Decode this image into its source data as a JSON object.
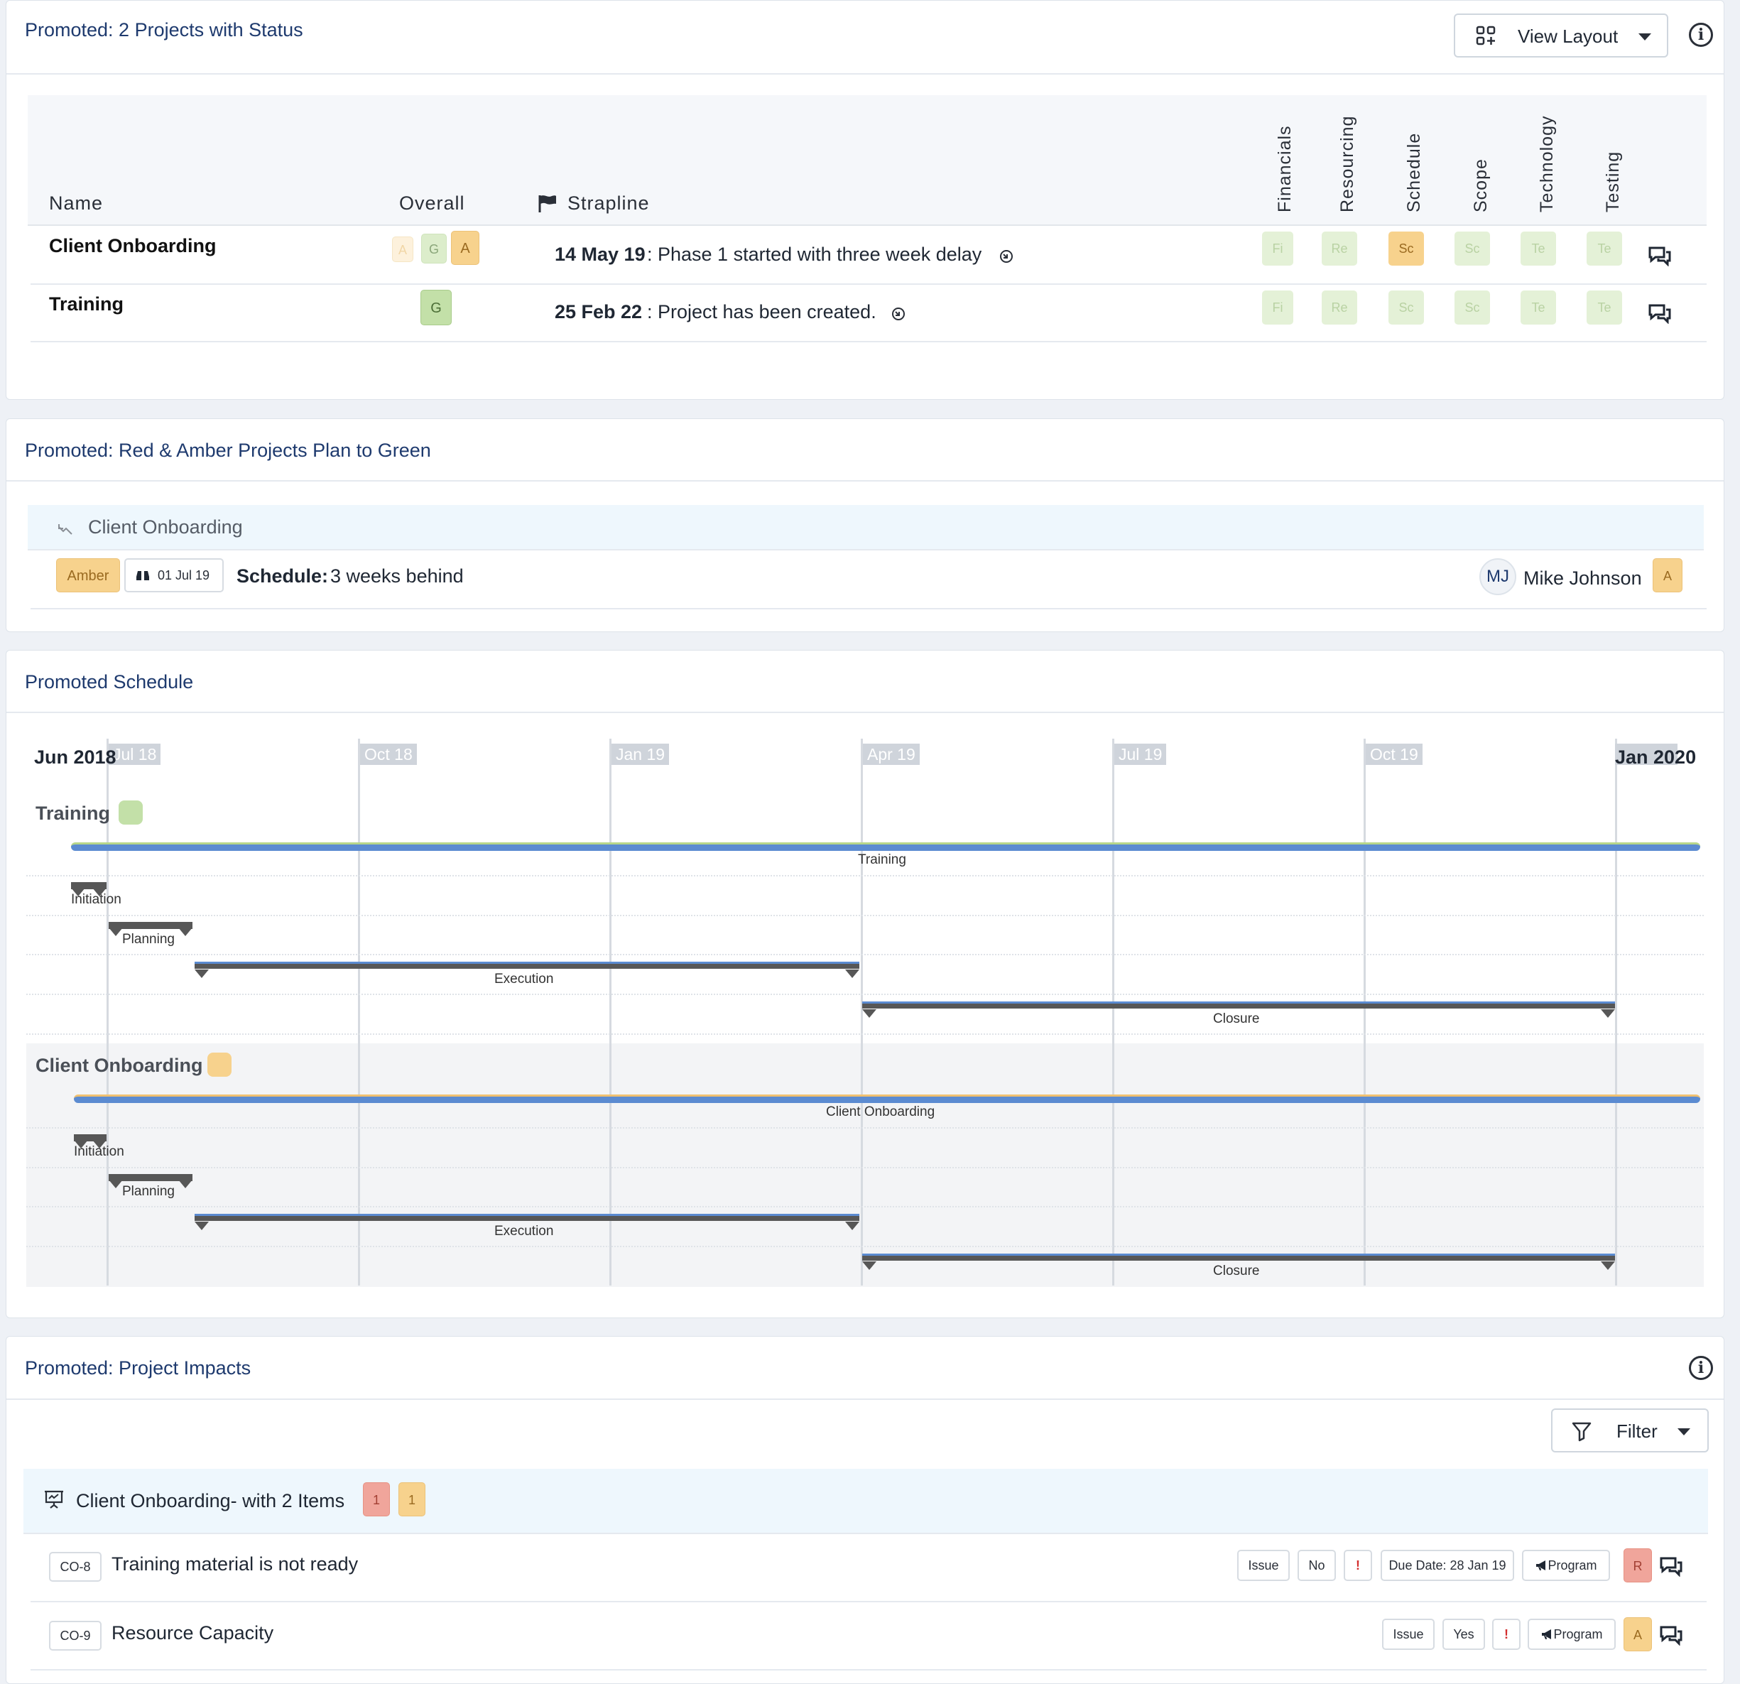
{
  "status_card": {
    "title": "Promoted: 2 Projects with Status",
    "view_layout_label": "View Layout",
    "columns": {
      "name": "Name",
      "overall": "Overall",
      "strapline": "Strapline"
    },
    "vertical_columns": [
      "Financials",
      "Resourcing",
      "Schedule",
      "Scope",
      "Technology",
      "Testing"
    ],
    "rows": [
      {
        "name": "Client Onboarding",
        "overall_small": [
          "A",
          "G",
          "A"
        ],
        "date": "14 May 19",
        "text": ": Phase 1 started with three week delay",
        "cells": [
          "Fi",
          "Re",
          "Sc",
          "Sc",
          "Te",
          "Te"
        ]
      },
      {
        "name": "Training",
        "overall": "G",
        "date": "25 Feb 22",
        "text": ": Project has been created.",
        "cells": [
          "Fi",
          "Re",
          "Sc",
          "Sc",
          "Te",
          "Te"
        ]
      }
    ]
  },
  "plan_card": {
    "title": "Promoted: Red & Amber Projects Plan to Green",
    "group": "Client Onboarding",
    "status": "Amber",
    "date": "01 Jul 19",
    "label": "Schedule:",
    "text": "3 weeks behind",
    "initials": "MJ",
    "owner": "Mike Johnson",
    "owner_badge": "A"
  },
  "schedule_card": {
    "title": "Promoted Schedule",
    "start": "Jun 2018",
    "end": "Jan 2020",
    "months": [
      "Jul 18",
      "Oct 18",
      "Jan 19",
      "Apr 19",
      "Jul 19",
      "Oct 19"
    ],
    "projects": [
      {
        "name": "Training",
        "bar": "Training",
        "phases": [
          "Initiation",
          "Planning",
          "Execution",
          "Closure"
        ]
      },
      {
        "name": "Client Onboarding",
        "bar": "Client Onboarding",
        "phases": [
          "Initiation",
          "Planning",
          "Execution",
          "Closure"
        ]
      }
    ]
  },
  "impacts_card": {
    "title": "Promoted: Project Impacts",
    "filter_label": "Filter",
    "group": "Client Onboarding- with 2 Items",
    "counts": [
      "1",
      "1"
    ],
    "items": [
      {
        "id": "CO-8",
        "title": "Training material is not ready",
        "type": "Issue",
        "flag": "No",
        "excl": "!",
        "due": "Due Date: 28 Jan 19",
        "scope": "Program",
        "rag": "R"
      },
      {
        "id": "CO-9",
        "title": "Resource Capacity",
        "type": "Issue",
        "flag": "Yes",
        "excl": "!",
        "scope": "Program",
        "rag": "A"
      }
    ]
  },
  "colors": {
    "green": "#c3e0a8",
    "amber": "#f7d28d",
    "red": "#f0a59b",
    "title": "#1e3a6e",
    "highlight": "#eef7fd"
  }
}
